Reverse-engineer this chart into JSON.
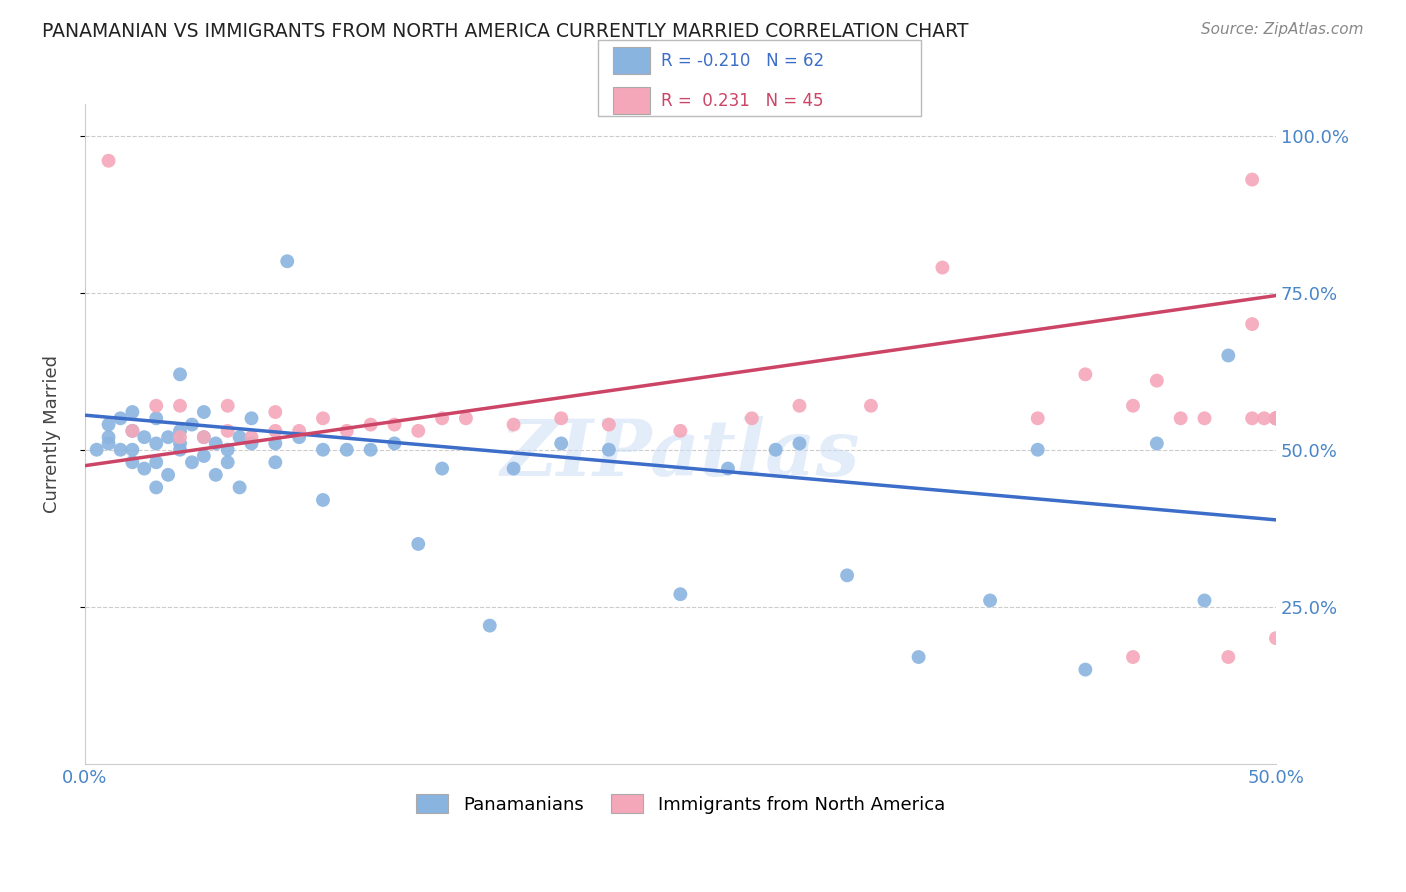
{
  "title": "PANAMANIAN VS IMMIGRANTS FROM NORTH AMERICA CURRENTLY MARRIED CORRELATION CHART",
  "source": "Source: ZipAtlas.com",
  "ylabel": "Currently Married",
  "xlim": [
    0.0,
    0.5
  ],
  "ylim": [
    0.0,
    1.05
  ],
  "ytick_labels": [
    "25.0%",
    "50.0%",
    "75.0%",
    "100.0%"
  ],
  "ytick_positions": [
    0.25,
    0.5,
    0.75,
    1.0
  ],
  "xtick_labels": [
    "0.0%",
    "50.0%"
  ],
  "xtick_positions": [
    0.0,
    0.5
  ],
  "watermark": "ZIPatlas",
  "color_blue": "#8ab4e0",
  "color_pink": "#f4a7b9",
  "color_blue_line": "#3c6dc8",
  "color_pink_line": "#cc4466",
  "color_title": "#222222",
  "color_source": "#888888",
  "color_axis_labels": "#4a86c8",
  "color_grid": "#cccccc",
  "legend_label1": "Panamanians",
  "legend_label2": "Immigrants from North America",
  "blue_x": [
    0.005,
    0.01,
    0.01,
    0.01,
    0.015,
    0.015,
    0.02,
    0.02,
    0.02,
    0.02,
    0.025,
    0.025,
    0.03,
    0.03,
    0.03,
    0.03,
    0.035,
    0.035,
    0.04,
    0.04,
    0.04,
    0.04,
    0.045,
    0.045,
    0.05,
    0.05,
    0.05,
    0.055,
    0.055,
    0.06,
    0.06,
    0.065,
    0.065,
    0.07,
    0.07,
    0.08,
    0.08,
    0.085,
    0.09,
    0.1,
    0.1,
    0.11,
    0.12,
    0.13,
    0.14,
    0.15,
    0.17,
    0.18,
    0.2,
    0.22,
    0.25,
    0.27,
    0.29,
    0.3,
    0.32,
    0.35,
    0.38,
    0.4,
    0.42,
    0.45,
    0.47,
    0.48
  ],
  "blue_y": [
    0.5,
    0.51,
    0.52,
    0.54,
    0.5,
    0.55,
    0.48,
    0.5,
    0.53,
    0.56,
    0.47,
    0.52,
    0.44,
    0.48,
    0.51,
    0.55,
    0.46,
    0.52,
    0.5,
    0.51,
    0.53,
    0.62,
    0.48,
    0.54,
    0.49,
    0.52,
    0.56,
    0.46,
    0.51,
    0.48,
    0.5,
    0.44,
    0.52,
    0.51,
    0.55,
    0.48,
    0.51,
    0.8,
    0.52,
    0.42,
    0.5,
    0.5,
    0.5,
    0.51,
    0.35,
    0.47,
    0.22,
    0.47,
    0.51,
    0.5,
    0.27,
    0.47,
    0.5,
    0.51,
    0.3,
    0.17,
    0.26,
    0.5,
    0.15,
    0.51,
    0.26,
    0.65
  ],
  "pink_x": [
    0.01,
    0.02,
    0.03,
    0.04,
    0.04,
    0.05,
    0.06,
    0.06,
    0.07,
    0.08,
    0.08,
    0.09,
    0.1,
    0.11,
    0.12,
    0.13,
    0.14,
    0.15,
    0.16,
    0.18,
    0.2,
    0.22,
    0.25,
    0.28,
    0.3,
    0.33,
    0.36,
    0.4,
    0.42,
    0.44,
    0.44,
    0.45,
    0.46,
    0.47,
    0.48,
    0.49,
    0.49,
    0.49,
    0.495,
    0.5,
    0.5,
    0.5,
    0.5,
    0.5,
    0.5
  ],
  "pink_y": [
    0.96,
    0.53,
    0.57,
    0.52,
    0.57,
    0.52,
    0.53,
    0.57,
    0.52,
    0.53,
    0.56,
    0.53,
    0.55,
    0.53,
    0.54,
    0.54,
    0.53,
    0.55,
    0.55,
    0.54,
    0.55,
    0.54,
    0.53,
    0.55,
    0.57,
    0.57,
    0.79,
    0.55,
    0.62,
    0.17,
    0.57,
    0.61,
    0.55,
    0.55,
    0.17,
    0.93,
    0.7,
    0.55,
    0.55,
    0.2,
    0.55,
    0.55,
    0.55,
    0.55,
    0.55
  ]
}
